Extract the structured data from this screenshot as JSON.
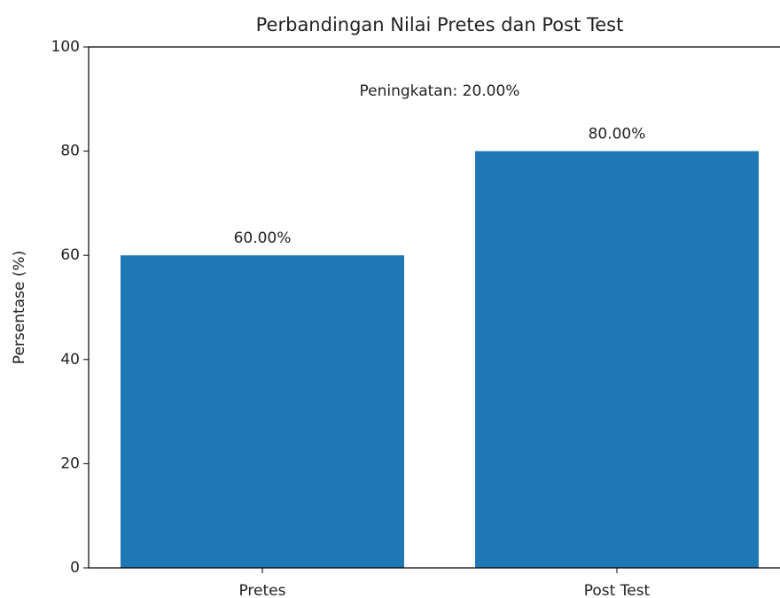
{
  "chart_data": {
    "type": "bar",
    "title": "Perbandingan Nilai Pretes dan Post Test",
    "ylabel": "Persentase (%)",
    "annotation": "Peningkatan: 20.00%",
    "categories": [
      "Pretes",
      "Post Test"
    ],
    "values": [
      60,
      80
    ],
    "value_labels": [
      "60.00%",
      "80.00%"
    ],
    "color": "#1f77b4",
    "ylim": [
      0,
      100
    ],
    "yticks": [
      0,
      20,
      40,
      60,
      80,
      100
    ],
    "grid": false
  }
}
